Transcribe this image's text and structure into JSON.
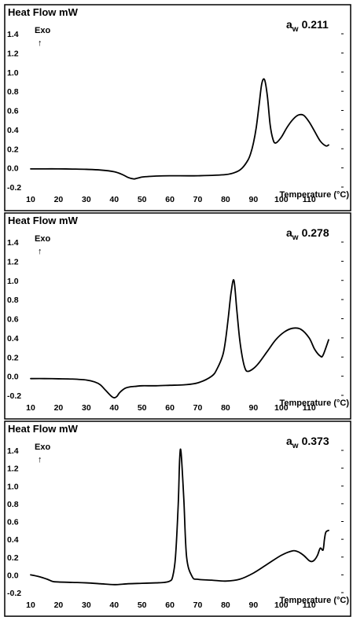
{
  "chart_data": [
    {
      "type": "line",
      "ylabel": "Heat Flow mW",
      "annotation": "Exo",
      "arrow": "↑",
      "label": {
        "main": "a",
        "sub": "w",
        "value": "0.211"
      },
      "xlabel": "Temperature (°C)",
      "xlim": [
        10,
        117
      ],
      "ylim": [
        -0.2,
        1.4
      ],
      "x_ticks": [
        10,
        20,
        30,
        40,
        50,
        60,
        70,
        80,
        90,
        100,
        110
      ],
      "y_ticks": [
        -0.2,
        0.0,
        0.2,
        0.4,
        0.6,
        0.8,
        1.0,
        1.2,
        1.4
      ],
      "y_tick_labels": [
        "-0.2",
        "0.0",
        "0.2",
        "0.4",
        "0.6",
        "0.8",
        "1.0",
        "1.2",
        "1.4"
      ],
      "series": [
        {
          "x": [
            10,
            15,
            20,
            25,
            30,
            35,
            40,
            43,
            45,
            47,
            48,
            50,
            52,
            55,
            60,
            70,
            80,
            84,
            86,
            88,
            89,
            90,
            91,
            92,
            93,
            94,
            95,
            96,
            97,
            98,
            100,
            102,
            104,
            106,
            108,
            110,
            112,
            114,
            116,
            117
          ],
          "y": [
            -0.01,
            -0.01,
            -0.01,
            -0.012,
            -0.015,
            -0.022,
            -0.04,
            -0.07,
            -0.1,
            -0.115,
            -0.11,
            -0.095,
            -0.09,
            -0.085,
            -0.082,
            -0.082,
            -0.07,
            -0.04,
            0.0,
            0.08,
            0.15,
            0.26,
            0.42,
            0.65,
            0.88,
            0.92,
            0.75,
            0.45,
            0.3,
            0.26,
            0.32,
            0.42,
            0.5,
            0.55,
            0.55,
            0.48,
            0.38,
            0.28,
            0.23,
            0.24
          ]
        }
      ]
    },
    {
      "type": "line",
      "ylabel": "Heat Flow mW",
      "annotation": "Exo",
      "arrow": "↑",
      "label": {
        "main": "a",
        "sub": "w",
        "value": "0.278"
      },
      "xlabel": "Temperature (°C)",
      "xlim": [
        10,
        117
      ],
      "ylim": [
        -0.2,
        1.4
      ],
      "x_ticks": [
        10,
        20,
        30,
        40,
        50,
        60,
        70,
        80,
        90,
        100,
        110
      ],
      "y_ticks": [
        -0.2,
        0.0,
        0.2,
        0.4,
        0.6,
        0.8,
        1.0,
        1.2,
        1.4
      ],
      "y_tick_labels": [
        "-0.2",
        "0.0",
        "0.2",
        "0.4",
        "0.6",
        "0.8",
        "1.0",
        "1.2",
        "1.4"
      ],
      "series": [
        {
          "x": [
            10,
            15,
            20,
            25,
            30,
            33,
            35,
            37,
            39,
            40,
            41,
            42,
            44,
            46,
            48,
            50,
            55,
            60,
            65,
            70,
            75,
            77,
            79,
            80,
            81,
            82,
            83,
            84,
            85,
            86,
            87,
            88,
            90,
            92,
            95,
            98,
            101,
            104,
            107,
            110,
            112,
            114,
            115,
            117
          ],
          "y": [
            -0.025,
            -0.025,
            -0.027,
            -0.03,
            -0.04,
            -0.06,
            -0.09,
            -0.15,
            -0.21,
            -0.225,
            -0.21,
            -0.17,
            -0.125,
            -0.11,
            -0.105,
            -0.1,
            -0.1,
            -0.095,
            -0.09,
            -0.07,
            0.0,
            0.08,
            0.22,
            0.38,
            0.62,
            0.88,
            1.0,
            0.7,
            0.4,
            0.2,
            0.08,
            0.05,
            0.08,
            0.14,
            0.26,
            0.38,
            0.46,
            0.5,
            0.49,
            0.4,
            0.28,
            0.21,
            0.22,
            0.38
          ]
        }
      ]
    },
    {
      "type": "line",
      "ylabel": "Heat Flow mW",
      "annotation": "Exo",
      "arrow": "↑",
      "label": {
        "main": "a",
        "sub": "w",
        "value": "0.373"
      },
      "xlabel": "Temperature (°C)",
      "xlim": [
        10,
        117
      ],
      "ylim": [
        -0.2,
        1.4
      ],
      "x_ticks": [
        10,
        20,
        30,
        40,
        50,
        60,
        70,
        80,
        90,
        100,
        110
      ],
      "y_ticks": [
        -0.2,
        0.0,
        0.2,
        0.4,
        0.6,
        0.8,
        1.0,
        1.2,
        1.4
      ],
      "y_tick_labels": [
        "-0.2",
        "0.0",
        "0.2",
        "0.4",
        "0.6",
        "0.8",
        "1.0",
        "1.2",
        "1.4"
      ],
      "series": [
        {
          "x": [
            10,
            13,
            16,
            18,
            20,
            25,
            30,
            35,
            40,
            45,
            50,
            55,
            58,
            60,
            61,
            62,
            63,
            63.5,
            64,
            65,
            66,
            68,
            70,
            75,
            80,
            85,
            90,
            95,
            100,
            104,
            106,
            108,
            110,
            111,
            112,
            113,
            114,
            115,
            115.5,
            116,
            117
          ],
          "y": [
            0.0,
            -0.02,
            -0.05,
            -0.075,
            -0.08,
            -0.085,
            -0.09,
            -0.1,
            -0.11,
            -0.1,
            -0.095,
            -0.09,
            -0.085,
            -0.07,
            -0.02,
            0.2,
            0.8,
            1.3,
            1.38,
            0.85,
            0.2,
            -0.02,
            -0.05,
            -0.06,
            -0.07,
            -0.05,
            0.02,
            0.12,
            0.22,
            0.27,
            0.26,
            0.22,
            0.16,
            0.15,
            0.17,
            0.22,
            0.3,
            0.28,
            0.4,
            0.48,
            0.5
          ]
        }
      ]
    }
  ]
}
